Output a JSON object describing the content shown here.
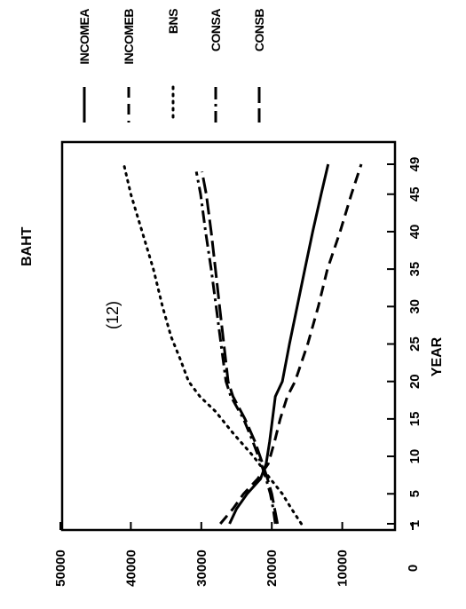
{
  "chart_data": {
    "type": "line",
    "title": "(12)",
    "xlabel": "YEAR",
    "ylabel": "BAHT",
    "xlim": [
      0,
      50
    ],
    "ylim": [
      0,
      50000
    ],
    "x_ticks": [
      "1",
      "5",
      "10",
      "15",
      "20",
      "25",
      "30",
      "35",
      "40",
      "45",
      "49"
    ],
    "y_ticks": [
      "0",
      "10000",
      "20000",
      "30000",
      "40000",
      "50000"
    ],
    "grid": false,
    "legend_position": "top",
    "series": [
      {
        "name": "INCOMEA",
        "style": "solid",
        "x": [
          1,
          3,
          5,
          7,
          9,
          12,
          15,
          18,
          20,
          25,
          30,
          35,
          40,
          45,
          49
        ],
        "y": [
          26000,
          25000,
          23500,
          21600,
          20800,
          20300,
          19900,
          19500,
          18500,
          17500,
          16400,
          15300,
          14200,
          13000,
          12000
        ]
      },
      {
        "name": "INCOMEB",
        "style": "dashed",
        "x": [
          1,
          3,
          5,
          7,
          9,
          12,
          15,
          18,
          20,
          25,
          30,
          35,
          40,
          45,
          49
        ],
        "y": [
          27300,
          25500,
          24000,
          22000,
          20500,
          19600,
          18800,
          17800,
          16700,
          14900,
          13400,
          12100,
          10300,
          8700,
          7300
        ]
      },
      {
        "name": "BNS",
        "style": "dotted",
        "x": [
          1,
          3,
          5,
          7,
          10,
          13,
          16,
          18,
          20,
          23,
          26,
          30,
          35,
          40,
          45,
          49
        ],
        "y": [
          15800,
          17200,
          18500,
          20200,
          22600,
          25400,
          28000,
          30200,
          31800,
          33000,
          34300,
          35500,
          36800,
          38400,
          40000,
          41000
        ]
      },
      {
        "name": "CONSA",
        "style": "dashdot",
        "x": [
          1,
          3,
          5,
          7,
          9,
          12,
          15,
          18,
          20,
          25,
          30,
          35,
          40,
          45,
          48
        ],
        "y": [
          19500,
          19800,
          20200,
          20800,
          21500,
          22700,
          24000,
          25800,
          26500,
          27200,
          27900,
          28600,
          29400,
          30100,
          30700
        ]
      },
      {
        "name": "CONSB",
        "style": "longdash",
        "x": [
          1,
          3,
          5,
          7,
          9,
          12,
          15,
          18,
          20,
          25,
          30,
          35,
          40,
          45,
          48
        ],
        "y": [
          19200,
          19600,
          20000,
          20600,
          21300,
          22400,
          23800,
          25500,
          26200,
          26800,
          27400,
          28000,
          28600,
          29300,
          29900
        ]
      }
    ]
  }
}
